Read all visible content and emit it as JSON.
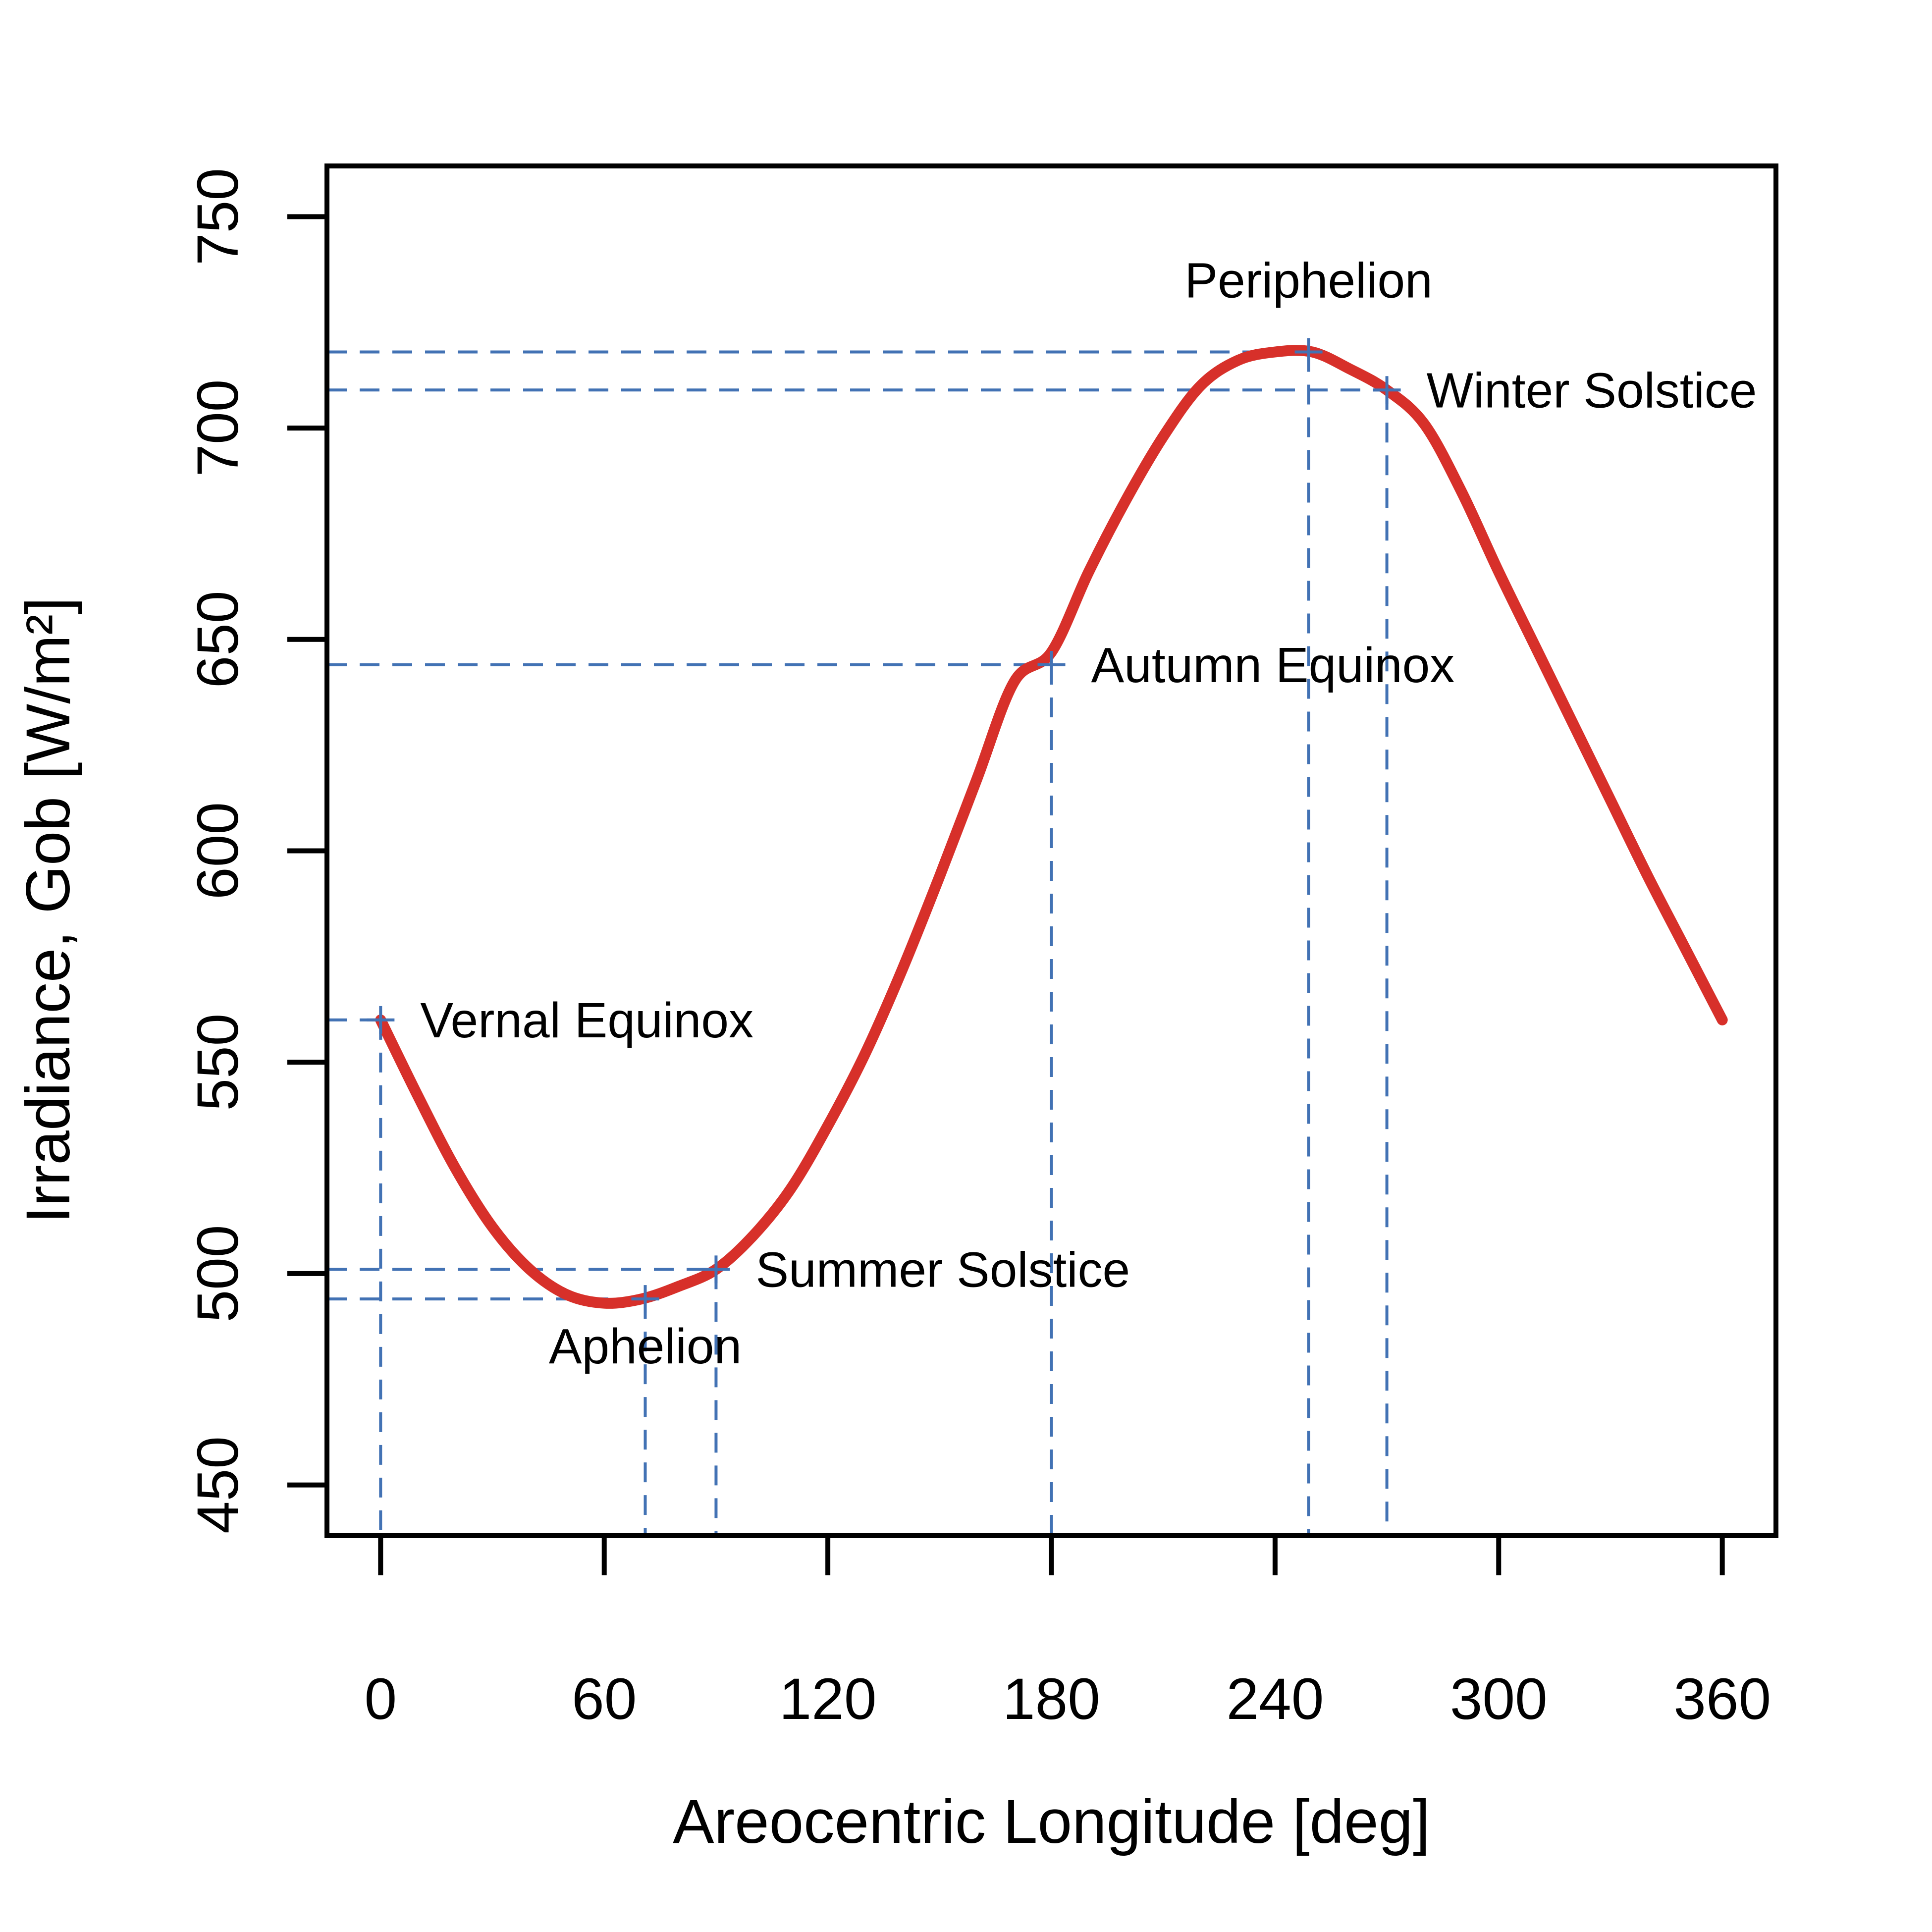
{
  "chart_data": {
    "type": "line",
    "title": "",
    "xlabel": "Areocentric Longitude [deg]",
    "ylabel": "Irradiance, Gob [W/m²]",
    "xlim": [
      -14.4,
      374.4
    ],
    "ylim": [
      438,
      762
    ],
    "xticks": [
      0,
      60,
      120,
      180,
      240,
      300,
      360
    ],
    "yticks": [
      450,
      500,
      550,
      600,
      650,
      700,
      750
    ],
    "grid": false,
    "series": [
      {
        "color": "#d7302a",
        "x": [
          0,
          10,
          20,
          30,
          40,
          50,
          60,
          70,
          80,
          90,
          100,
          110,
          120,
          130,
          140,
          150,
          160,
          170,
          180,
          190,
          200,
          210,
          220,
          230,
          240,
          250,
          260,
          270,
          280,
          290,
          300,
          310,
          320,
          330,
          340,
          350,
          360
        ],
        "y": [
          560,
          542,
          525,
          511,
          501,
          495,
          493,
          494,
          497,
          501,
          509,
          520,
          535,
          552,
          572,
          594,
          617,
          640,
          647,
          666,
          683,
          698,
          710,
          716,
          718,
          718,
          714,
          709,
          701,
          685,
          666,
          648,
          630,
          612,
          594,
          577,
          560
        ]
      }
    ],
    "guide_color": "#4272b4",
    "annotations": [
      {
        "label": "Vernal Equinox",
        "x": 0,
        "y": 560
      },
      {
        "label": "Aphelion",
        "x": 71,
        "y": 494
      },
      {
        "label": "Summer Solstice",
        "x": 90,
        "y": 501
      },
      {
        "label": "Autumn Equinox",
        "x": 180,
        "y": 644
      },
      {
        "label": "Periphelion",
        "x": 249,
        "y": 718
      },
      {
        "label": "Winter Solstice",
        "x": 270,
        "y": 709
      }
    ]
  }
}
